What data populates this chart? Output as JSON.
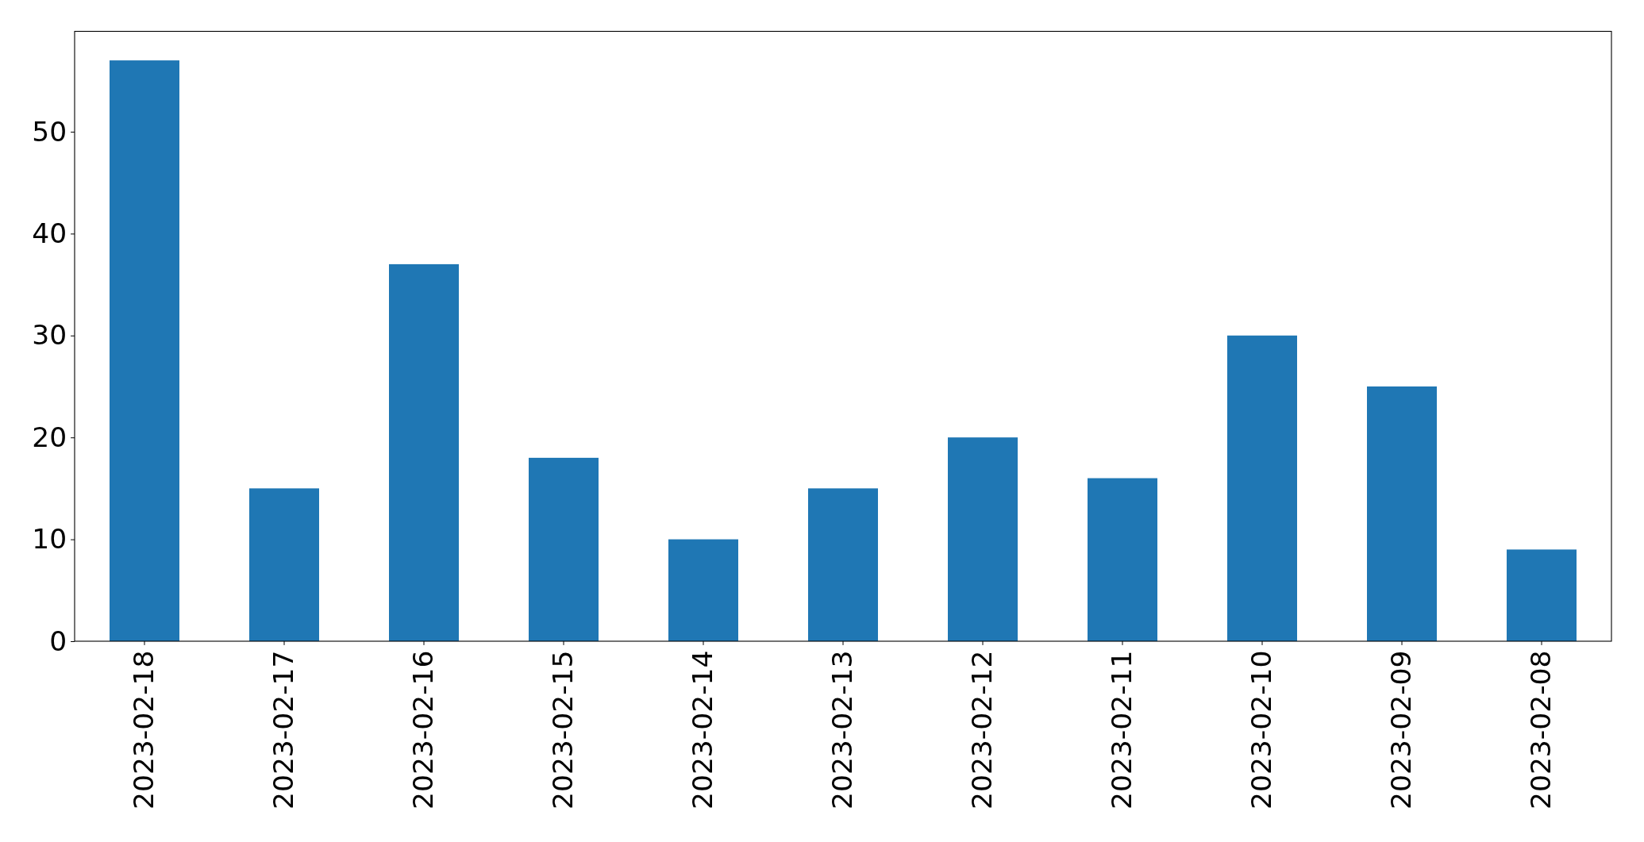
{
  "chart_data": {
    "type": "bar",
    "categories": [
      "2023-02-18",
      "2023-02-17",
      "2023-02-16",
      "2023-02-15",
      "2023-02-14",
      "2023-02-13",
      "2023-02-12",
      "2023-02-11",
      "2023-02-10",
      "2023-02-09",
      "2023-02-08"
    ],
    "values": [
      57,
      15,
      37,
      18,
      10,
      15,
      20,
      16,
      30,
      25,
      9
    ],
    "color": "#1f77b4",
    "ylim": [
      0,
      59.85
    ],
    "yticks": [
      0,
      10,
      20,
      30,
      40,
      50
    ],
    "grid": false
  }
}
